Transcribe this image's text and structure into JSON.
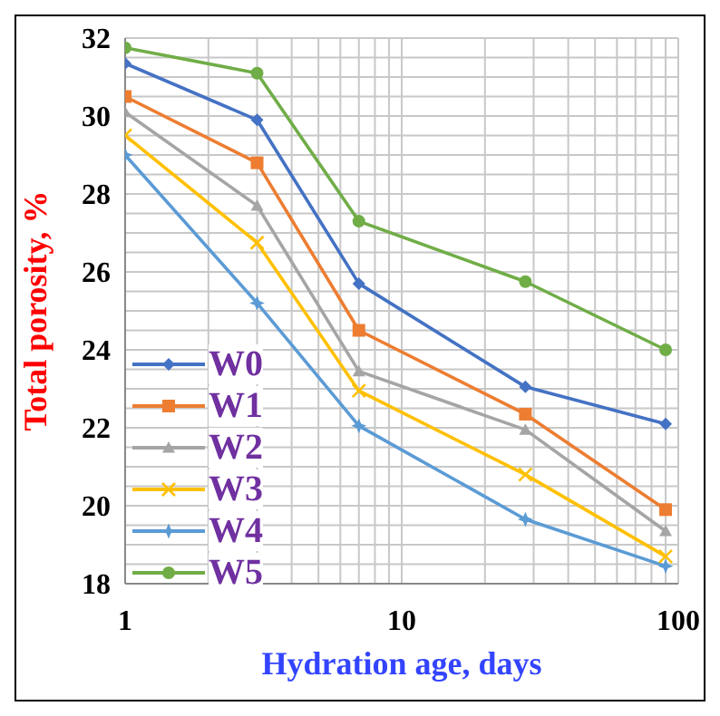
{
  "chart_data": {
    "type": "line",
    "xlabel": "Hydration age, days",
    "ylabel": "Total porosity, %",
    "x": [
      1,
      3,
      7,
      28,
      90
    ],
    "log": "x",
    "xlim": [
      1,
      100
    ],
    "xticks": [
      1,
      10,
      100
    ],
    "ylim": [
      18,
      32
    ],
    "yticks": [
      18,
      20,
      22,
      24,
      26,
      28,
      30,
      32
    ],
    "grid": true,
    "legend": "bottom left",
    "series": [
      {
        "name": "W0",
        "color": "#4472c4",
        "marker": "diamond",
        "values": [
          31.35,
          29.9,
          25.7,
          23.05,
          22.1
        ]
      },
      {
        "name": "W1",
        "color": "#ed7d31",
        "marker": "square",
        "values": [
          30.5,
          28.8,
          24.5,
          22.35,
          19.9
        ]
      },
      {
        "name": "W2",
        "color": "#a5a5a5",
        "marker": "triangle",
        "values": [
          30.1,
          27.7,
          23.45,
          21.95,
          19.35
        ]
      },
      {
        "name": "W3",
        "color": "#ffc000",
        "marker": "cross",
        "values": [
          29.5,
          26.75,
          22.95,
          20.8,
          18.7
        ]
      },
      {
        "name": "W4",
        "color": "#5b9bd5",
        "marker": "star",
        "values": [
          29.0,
          25.2,
          22.05,
          19.65,
          18.45
        ]
      },
      {
        "name": "W5",
        "color": "#70ad47",
        "marker": "circle",
        "values": [
          31.75,
          31.1,
          27.3,
          25.75,
          24.0
        ]
      }
    ]
  }
}
